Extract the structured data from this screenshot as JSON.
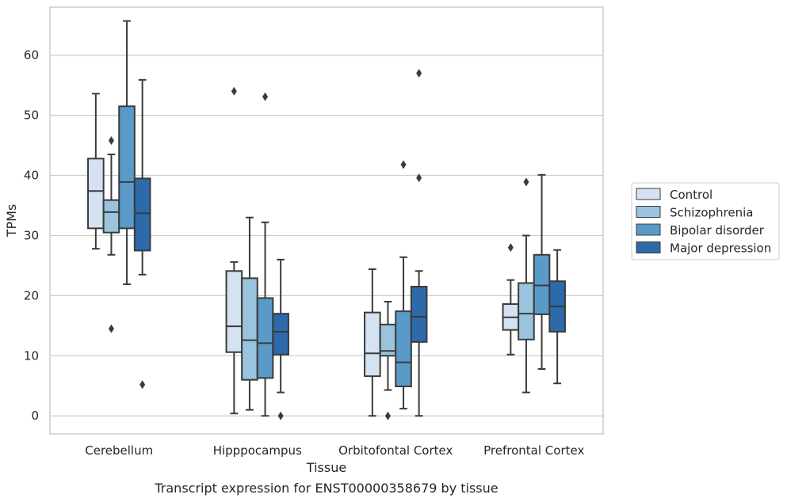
{
  "chart_data": {
    "type": "box",
    "title": "",
    "caption": "Transcript expression for ENST00000358679 by tissue",
    "xlabel": "Tissue",
    "ylabel": "TPMs",
    "ylim": [
      -3,
      68
    ],
    "yticks": [
      0,
      10,
      20,
      30,
      40,
      50,
      60
    ],
    "grid": "horizontal",
    "legend_position": "right",
    "categories": [
      "Cerebellum",
      "Hipppocampus",
      "Orbitofontal Cortex",
      "Prefrontal Cortex"
    ],
    "series": [
      {
        "name": "Control",
        "color": "#d4e2f1",
        "boxes": [
          {
            "whislo": 27.8,
            "q1": 31.2,
            "med": 37.4,
            "q3": 42.8,
            "whishi": 53.6,
            "fliers": []
          },
          {
            "whislo": 0.4,
            "q1": 10.6,
            "med": 14.9,
            "q3": 24.1,
            "whishi": 25.6,
            "fliers": [
              54.0
            ]
          },
          {
            "whislo": 0.0,
            "q1": 6.6,
            "med": 10.4,
            "q3": 17.2,
            "whishi": 24.4,
            "fliers": []
          },
          {
            "whislo": 10.2,
            "q1": 14.3,
            "med": 16.4,
            "q3": 18.6,
            "whishi": 22.6,
            "fliers": [
              28.0
            ]
          }
        ]
      },
      {
        "name": "Schizophrenia",
        "color": "#9ac4de",
        "boxes": [
          {
            "whislo": 26.8,
            "q1": 30.5,
            "med": 33.9,
            "q3": 35.9,
            "whishi": 43.5,
            "fliers": [
              45.8,
              14.5
            ]
          },
          {
            "whislo": 1.0,
            "q1": 6.0,
            "med": 12.6,
            "q3": 22.9,
            "whishi": 33.0,
            "fliers": []
          },
          {
            "whislo": 4.3,
            "q1": 10.0,
            "med": 10.8,
            "q3": 15.2,
            "whishi": 19.0,
            "fliers": [
              0.0
            ]
          },
          {
            "whislo": 3.9,
            "q1": 12.7,
            "med": 17.0,
            "q3": 22.1,
            "whishi": 30.0,
            "fliers": [
              38.9
            ]
          }
        ]
      },
      {
        "name": "Bipolar disorder",
        "color": "#5a9ac9",
        "boxes": [
          {
            "whislo": 21.9,
            "q1": 31.2,
            "med": 38.9,
            "q3": 51.5,
            "whishi": 65.7,
            "fliers": []
          },
          {
            "whislo": 0.0,
            "q1": 6.3,
            "med": 12.1,
            "q3": 19.6,
            "whishi": 32.2,
            "fliers": [
              53.1
            ]
          },
          {
            "whislo": 1.2,
            "q1": 4.9,
            "med": 8.9,
            "q3": 17.4,
            "whishi": 26.4,
            "fliers": [
              41.8
            ]
          },
          {
            "whislo": 7.8,
            "q1": 16.9,
            "med": 21.7,
            "q3": 26.8,
            "whishi": 40.1,
            "fliers": []
          }
        ]
      },
      {
        "name": "Major depression",
        "color": "#2c6aa9",
        "boxes": [
          {
            "whislo": 23.5,
            "q1": 27.5,
            "med": 33.7,
            "q3": 39.5,
            "whishi": 55.9,
            "fliers": [
              5.2
            ]
          },
          {
            "whislo": 3.9,
            "q1": 10.2,
            "med": 14.0,
            "q3": 17.0,
            "whishi": 26.0,
            "fliers": [
              0.0
            ]
          },
          {
            "whislo": 0.0,
            "q1": 12.3,
            "med": 16.5,
            "q3": 21.5,
            "whishi": 24.1,
            "fliers": [
              57.0,
              39.6
            ]
          },
          {
            "whislo": 5.4,
            "q1": 14.0,
            "med": 18.2,
            "q3": 22.4,
            "whishi": 27.6,
            "fliers": []
          }
        ]
      }
    ]
  }
}
